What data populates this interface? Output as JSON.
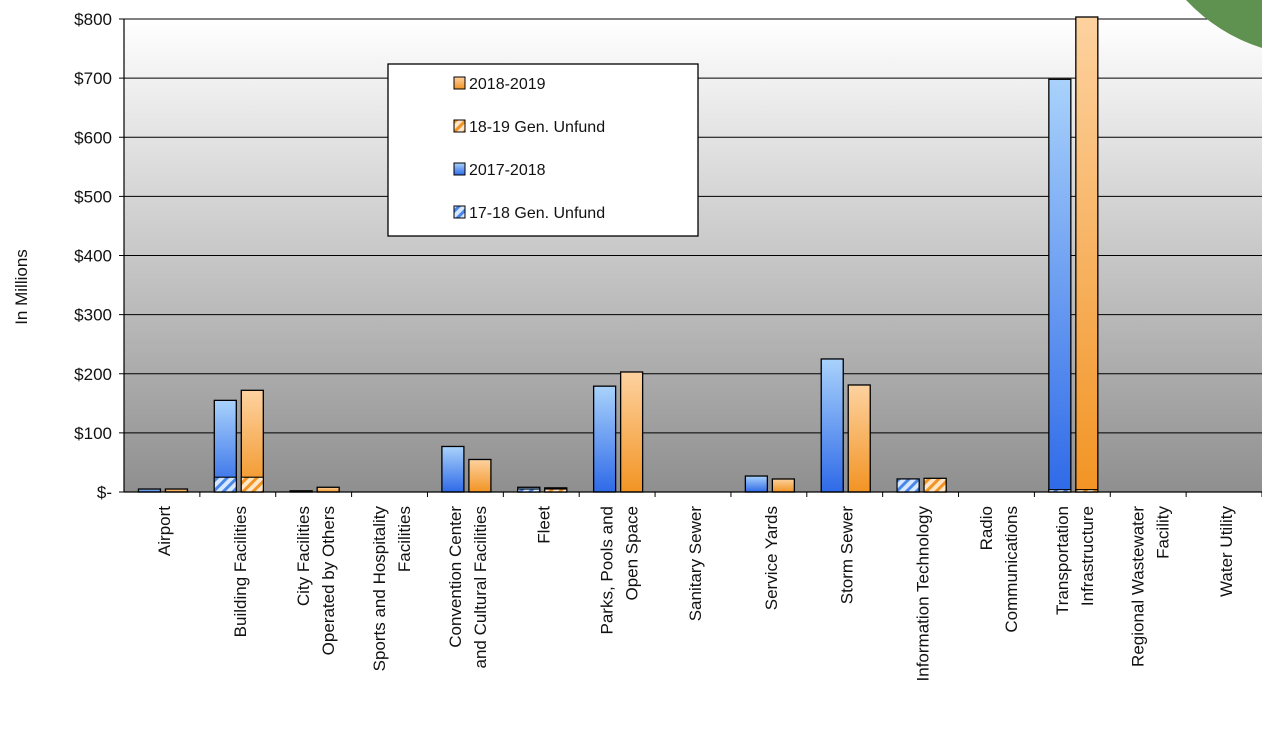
{
  "chart_data": {
    "type": "bar",
    "title": "",
    "xlabel": "",
    "ylabel": "In Millions",
    "ylim": [
      0,
      800
    ],
    "y_ticks": [
      0,
      100,
      200,
      300,
      400,
      500,
      600,
      700,
      800
    ],
    "y_tick_labels": [
      "$-",
      "$100",
      "$200",
      "$300",
      "$400",
      "$500",
      "$600",
      "$700",
      "$800"
    ],
    "grid": true,
    "legend_position": "top-center",
    "categories": [
      [
        "Airport"
      ],
      [
        "Building Facilities"
      ],
      [
        "City Facilities",
        "Operated by Others"
      ],
      [
        "Sports and Hospitality",
        "Facilities"
      ],
      [
        "Convention Center",
        "and Cultural Facilities"
      ],
      [
        "Fleet"
      ],
      [
        "Parks, Pools and",
        "Open Space"
      ],
      [
        "Sanitary Sewer"
      ],
      [
        "Service Yards"
      ],
      [
        "Storm Sewer"
      ],
      [
        "Information Technology"
      ],
      [
        "Radio",
        "Communications"
      ],
      [
        "Transportation",
        "Infrastructure"
      ],
      [
        "Regional Wastewater",
        "Facility"
      ],
      [
        "Water Utility"
      ]
    ],
    "series": [
      {
        "name": "2017-2018",
        "values": [
          5,
          155,
          2,
          0,
          77,
          8,
          179,
          0,
          27,
          225,
          22,
          0,
          698,
          0,
          0
        ],
        "color": "#4a86e8"
      },
      {
        "name": "17-18 Gen. Unfund",
        "values": [
          0,
          25,
          0,
          0,
          0,
          5,
          0,
          0,
          0,
          0,
          22,
          0,
          4,
          0,
          0
        ],
        "color": "#4a86e8"
      },
      {
        "name": "2018-2019",
        "values": [
          5,
          172,
          8,
          0,
          55,
          7,
          203,
          0,
          22,
          181,
          23,
          0,
          810,
          0,
          0
        ],
        "color": "#f5a04a"
      },
      {
        "name": "18-19 Gen. Unfund",
        "values": [
          0,
          25,
          0,
          0,
          0,
          5,
          0,
          0,
          0,
          0,
          23,
          0,
          4,
          0,
          0
        ],
        "color": "#f5a04a"
      }
    ],
    "legend_order": [
      "2018-2019",
      "18-19 Gen. Unfund",
      "2017-2018",
      "17-18 Gen. Unfund"
    ]
  },
  "colors": {
    "blue_dark": "#2f6ae8",
    "blue_light": "#a9d2fb",
    "orange_dark": "#f29424",
    "orange_light": "#fdd2a0",
    "decoration": "#5f9150"
  }
}
